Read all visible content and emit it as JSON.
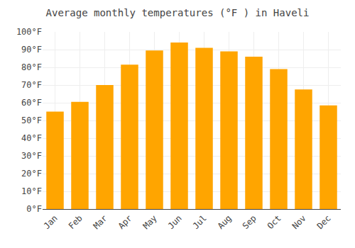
{
  "chart_data": {
    "type": "bar",
    "title": "Average monthly temperatures (°F ) in Haveli",
    "categories": [
      "Jan",
      "Feb",
      "Mar",
      "Apr",
      "May",
      "Jun",
      "Jul",
      "Aug",
      "Sep",
      "Oct",
      "Nov",
      "Dec"
    ],
    "values": [
      55,
      60.5,
      70,
      81.5,
      89.5,
      94,
      91,
      89,
      86,
      79,
      67.5,
      58.5
    ],
    "color": "#FFA500",
    "ylim": [
      0,
      100
    ],
    "yticks": [
      {
        "value": 0,
        "label": "0°F"
      },
      {
        "value": 10,
        "label": "10°F"
      },
      {
        "value": 20,
        "label": "20°F"
      },
      {
        "value": 30,
        "label": "30°F"
      },
      {
        "value": 40,
        "label": "40°F"
      },
      {
        "value": 50,
        "label": "50°F"
      },
      {
        "value": 60,
        "label": "60°F"
      },
      {
        "value": 70,
        "label": "70°F"
      },
      {
        "value": 80,
        "label": "80°F"
      },
      {
        "value": 90,
        "label": "90°F"
      },
      {
        "value": 100,
        "label": "100°F"
      }
    ],
    "grid": true
  }
}
